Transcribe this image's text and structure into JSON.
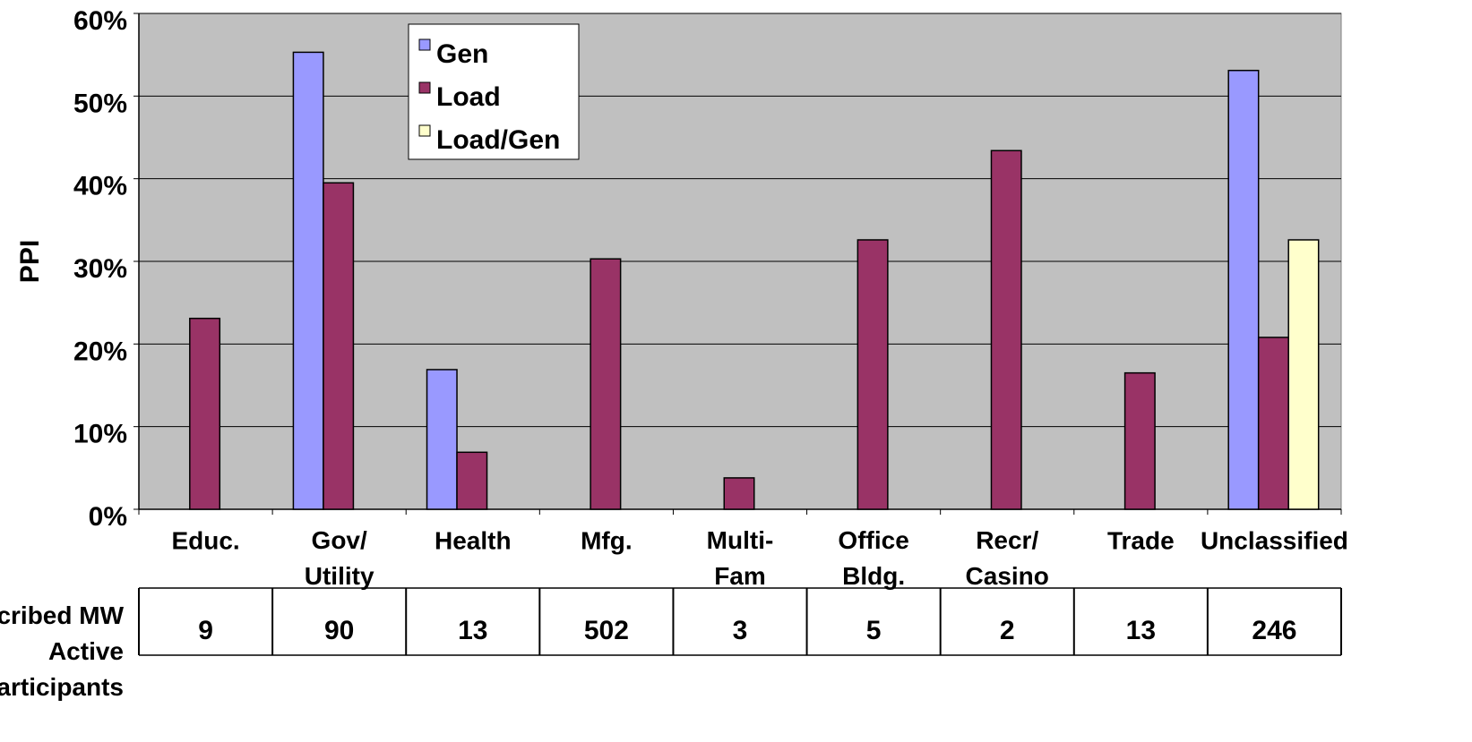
{
  "chart_data": {
    "type": "bar",
    "y_label": "PPI",
    "categories": [
      "Educ.",
      "Gov/\nUtility",
      "Health",
      "Mfg.",
      "Multi-\nFam",
      "Office\nBldg.",
      "Recr/\nCasino",
      "Trade",
      "Unclassified"
    ],
    "series": [
      {
        "name": "Gen",
        "color": "#9999ff",
        "values": [
          null,
          55.3,
          16.9,
          null,
          null,
          null,
          null,
          null,
          53.1
        ]
      },
      {
        "name": "Load",
        "color": "#993366",
        "values": [
          23.1,
          39.5,
          6.9,
          30.3,
          3.8,
          32.6,
          43.4,
          16.5,
          20.8
        ]
      },
      {
        "name": "Load/Gen",
        "color": "#ffffcc",
        "values": [
          null,
          null,
          null,
          null,
          null,
          null,
          null,
          null,
          32.6
        ]
      }
    ],
    "ylim": [
      0,
      60
    ],
    "yticks": [
      {
        "value": 0,
        "label": "0%"
      },
      {
        "value": 10,
        "label": "10%"
      },
      {
        "value": 20,
        "label": "20%"
      },
      {
        "value": 30,
        "label": "30%"
      },
      {
        "value": 40,
        "label": "40%"
      },
      {
        "value": 50,
        "label": "50%"
      },
      {
        "value": 60,
        "label": "60%"
      }
    ],
    "grid": true,
    "legend": "top-left",
    "table_label": "Subscribed MW\nActive\nParticipants",
    "table_values": [
      9,
      90,
      13,
      502,
      3,
      5,
      2,
      13,
      246
    ]
  }
}
